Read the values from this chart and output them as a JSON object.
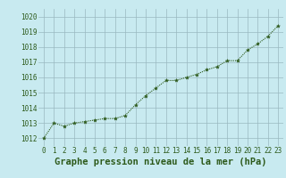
{
  "x": [
    0,
    1,
    2,
    3,
    4,
    5,
    6,
    7,
    8,
    9,
    10,
    11,
    12,
    13,
    14,
    15,
    16,
    17,
    18,
    19,
    20,
    21,
    22,
    23
  ],
  "y": [
    1012.0,
    1013.0,
    1012.8,
    1013.0,
    1013.1,
    1013.2,
    1013.3,
    1013.3,
    1013.5,
    1014.2,
    1014.8,
    1015.3,
    1015.8,
    1015.8,
    1016.0,
    1016.2,
    1016.5,
    1016.7,
    1017.1,
    1017.1,
    1017.8,
    1018.2,
    1018.7,
    1019.4
  ],
  "line_color": "#2d5a1b",
  "marker_color": "#2d5a1b",
  "bg_color": "#c8eaf0",
  "grid_color": "#9ab8c0",
  "xlabel": "Graphe pression niveau de la mer (hPa)",
  "xlabel_color": "#2d5a1b",
  "ylim_min": 1011.5,
  "ylim_max": 1020.5,
  "yticks": [
    1012,
    1013,
    1014,
    1015,
    1016,
    1017,
    1018,
    1019,
    1020
  ],
  "xticks": [
    0,
    1,
    2,
    3,
    4,
    5,
    6,
    7,
    8,
    9,
    10,
    11,
    12,
    13,
    14,
    15,
    16,
    17,
    18,
    19,
    20,
    21,
    22,
    23
  ],
  "tick_label_color": "#2d5a1b",
  "tick_label_fontsize": 5.5,
  "xlabel_fontsize": 7.5
}
